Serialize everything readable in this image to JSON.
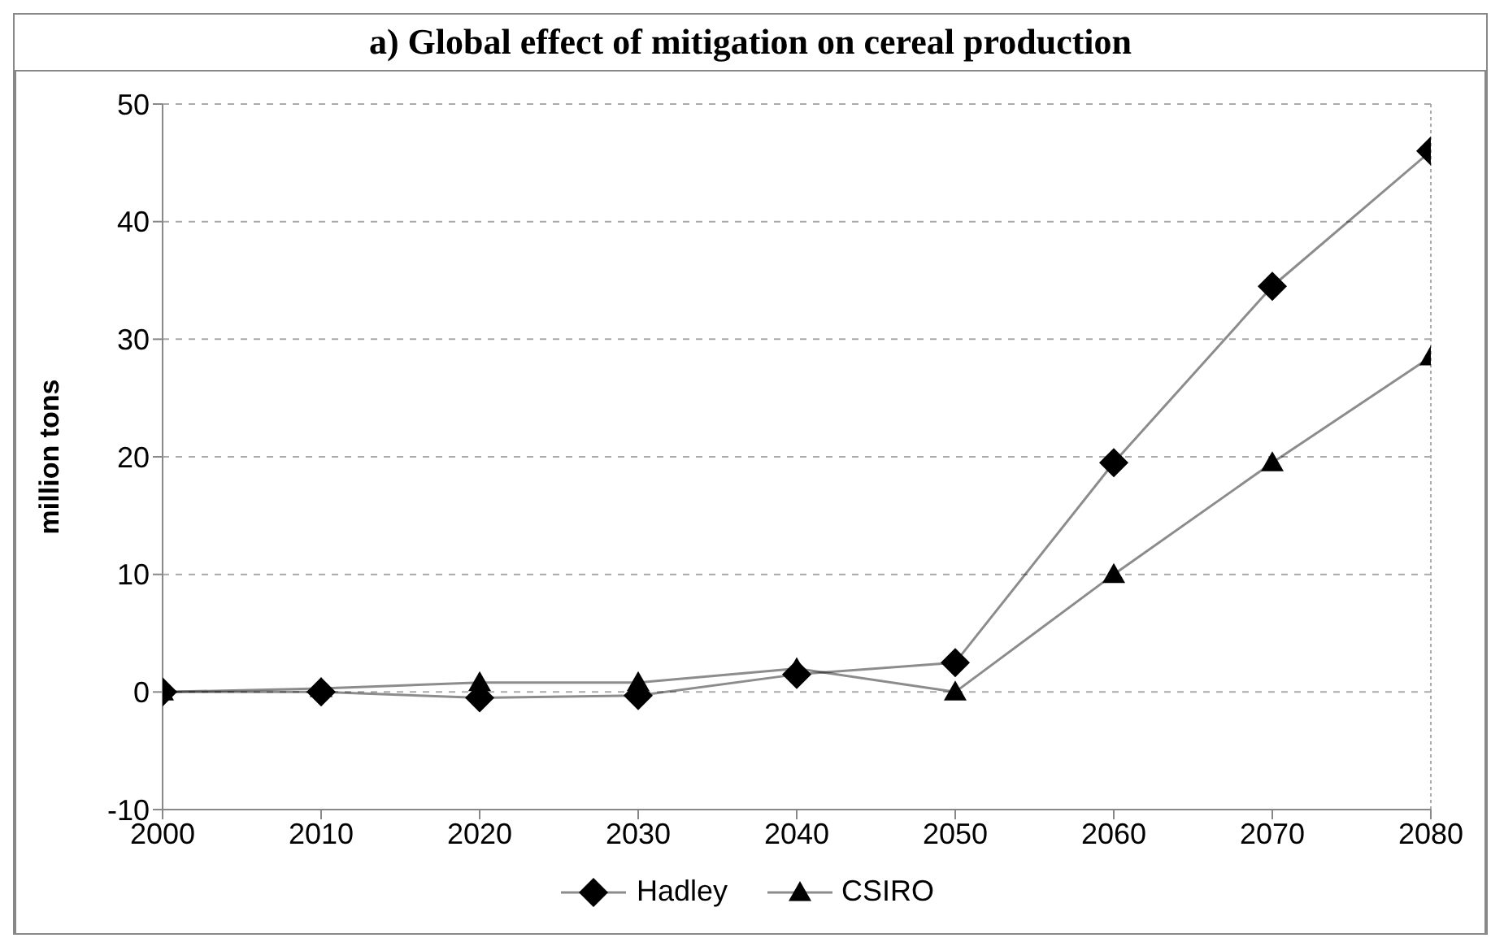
{
  "chart_data": {
    "type": "line",
    "title": "a) Global effect of mitigation on cereal production",
    "ylabel": "million tons",
    "x": [
      2000,
      2010,
      2020,
      2030,
      2040,
      2050,
      2060,
      2070,
      2080
    ],
    "series": [
      {
        "name": "Hadley",
        "color": "#000000",
        "marker": "diamond",
        "values": [
          0,
          0,
          -0.5,
          -0.3,
          1.5,
          2.5,
          19.5,
          34.5,
          46
        ]
      },
      {
        "name": "CSIRO",
        "color": "#000000",
        "marker": "triangle",
        "values": [
          0,
          0.3,
          0.8,
          0.8,
          2,
          0,
          10,
          19.5,
          28.5
        ]
      }
    ],
    "xlim": [
      2000,
      2080
    ],
    "xticks": [
      2000,
      2010,
      2020,
      2030,
      2040,
      2050,
      2060,
      2070,
      2080
    ],
    "ylim": [
      -10,
      50
    ],
    "yticks": [
      -10,
      0,
      10,
      20,
      30,
      40,
      50
    ],
    "grid": "y",
    "legend": "bottom",
    "line_style": "solid"
  }
}
